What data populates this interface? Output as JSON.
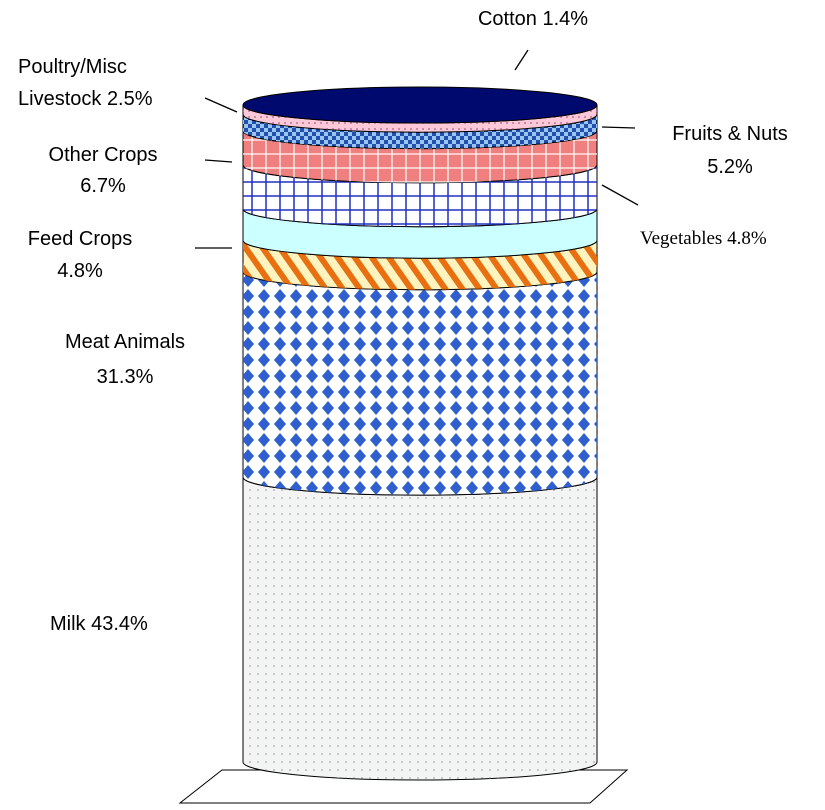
{
  "chart_data": {
    "type": "stacked-cylinder",
    "categories": [
      "Milk",
      "Meat Animals",
      "Feed Crops",
      "Vegetables",
      "Other Crops",
      "Fruits & Nuts",
      "Poultry/Misc Livestock",
      "Cotton"
    ],
    "values": [
      43.4,
      31.3,
      4.8,
      4.8,
      6.7,
      5.2,
      2.5,
      1.4
    ],
    "value_labels": [
      "43.4%",
      "31.3%",
      "4.8%",
      "4.8%",
      "6.7%",
      "5.2%",
      "2.5%",
      "1.4%"
    ],
    "colors": [
      "#f4f4f4",
      "#ffffff",
      "#fff4c0",
      "#ccffff",
      "#ffffff",
      "#f08080",
      "#2050b0",
      "#ffc8d8"
    ]
  }
}
